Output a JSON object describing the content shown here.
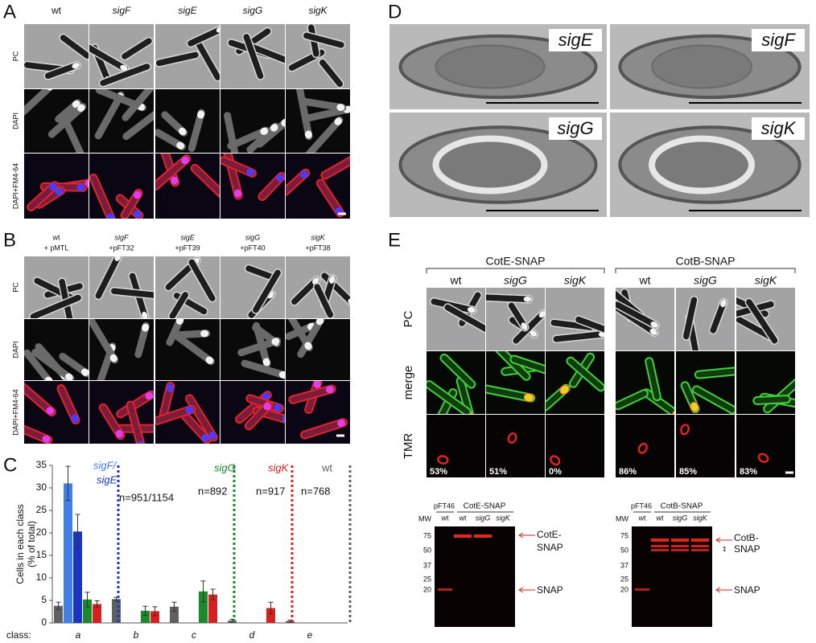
{
  "panel_a": {
    "letter": "A",
    "columns": [
      "wt",
      "sigF",
      "sigE",
      "sigG",
      "sigK"
    ],
    "rows": [
      "PC",
      "DAPI",
      "DAPI+FM4-64"
    ]
  },
  "panel_b": {
    "letter": "B",
    "columns": [
      {
        "strain": "wt",
        "plasmid": "+ pMTL"
      },
      {
        "strain": "sigF",
        "plasmid": "+pFT32"
      },
      {
        "strain": "sigE",
        "plasmid": "+pFT39"
      },
      {
        "strain": "sigG",
        "plasmid": "+pFT40"
      },
      {
        "strain": "sigK",
        "plasmid": "+pFT38"
      }
    ],
    "rows": [
      "PC",
      "DAPI",
      "DAPI+FM4-64"
    ]
  },
  "panel_c": {
    "letter": "C"
  },
  "panel_d": {
    "letter": "D",
    "labels": [
      "sigE",
      "sigF",
      "sigG",
      "sigK"
    ]
  },
  "panel_e": {
    "letter": "E",
    "groups": [
      {
        "name": "CotE-SNAP",
        "columns": [
          "wt",
          "sigG",
          "sigK"
        ],
        "percentages": [
          "53%",
          "51%",
          "0%"
        ]
      },
      {
        "name": "CotB-SNAP",
        "columns": [
          "wt",
          "sigG",
          "sigK"
        ],
        "percentages": [
          "86%",
          "85%",
          "83%"
        ]
      }
    ],
    "rows": [
      "PC",
      "merge",
      "TMR"
    ],
    "gels": [
      {
        "plasmid": "pFT46",
        "construct": "CotE-SNAP",
        "mw_label": "MW",
        "lanes": [
          "wt",
          "wt",
          "sigG",
          "sigK"
        ],
        "markers": [
          75,
          50,
          37,
          25,
          20
        ],
        "fusion_label": [
          "CotE-",
          "SNAP"
        ],
        "snap_label": "SNAP"
      },
      {
        "plasmid": "pFT46",
        "construct": "CotB-SNAP",
        "mw_label": "MW",
        "lanes": [
          "wt",
          "wt",
          "sigG",
          "sigK"
        ],
        "markers": [
          75,
          50,
          37,
          25,
          20
        ],
        "fusion_label": [
          "CotB-",
          "SNAP"
        ],
        "snap_label": "SNAP",
        "note": "**"
      }
    ]
  },
  "chart_data": {
    "type": "bar",
    "ylabel": [
      "Cells in each class",
      "(% of total)"
    ],
    "class_label": "class:",
    "categories": [
      "a",
      "b",
      "c",
      "d",
      "e"
    ],
    "ylim": [
      0,
      35
    ],
    "yticks": [
      0,
      5,
      10,
      15,
      20,
      25,
      30,
      35
    ],
    "series": [
      {
        "name": "wt",
        "color": "#606060",
        "values": [
          3.8,
          5.3,
          3.6,
          0.5,
          0.4
        ],
        "errors": [
          0.8,
          0.4,
          1.0,
          0.3,
          0.2
        ]
      },
      {
        "name": "sigF/",
        "color": "#3f7fe6",
        "values": [
          31,
          0,
          0,
          0,
          0
        ],
        "errors": [
          3.8,
          null,
          null,
          null,
          null
        ]
      },
      {
        "name": "sigE",
        "color": "#1c34c4",
        "values": [
          20.3,
          0,
          0,
          0,
          0
        ],
        "errors": [
          3.8,
          null,
          null,
          null,
          null
        ]
      },
      {
        "name": "sigG",
        "color": "#1a8a2a",
        "values": [
          5.2,
          2.7,
          7.0,
          0,
          0
        ],
        "errors": [
          1.6,
          1.0,
          2.3,
          null,
          null
        ]
      },
      {
        "name": "sigK",
        "color": "#d9201e",
        "values": [
          4.2,
          2.6,
          6.3,
          3.3,
          0
        ],
        "errors": [
          0.7,
          1.0,
          1.2,
          1.3,
          null
        ]
      }
    ],
    "annotations": [
      "n=951/1154",
      "n=892",
      "n=917",
      "n=768"
    ]
  }
}
